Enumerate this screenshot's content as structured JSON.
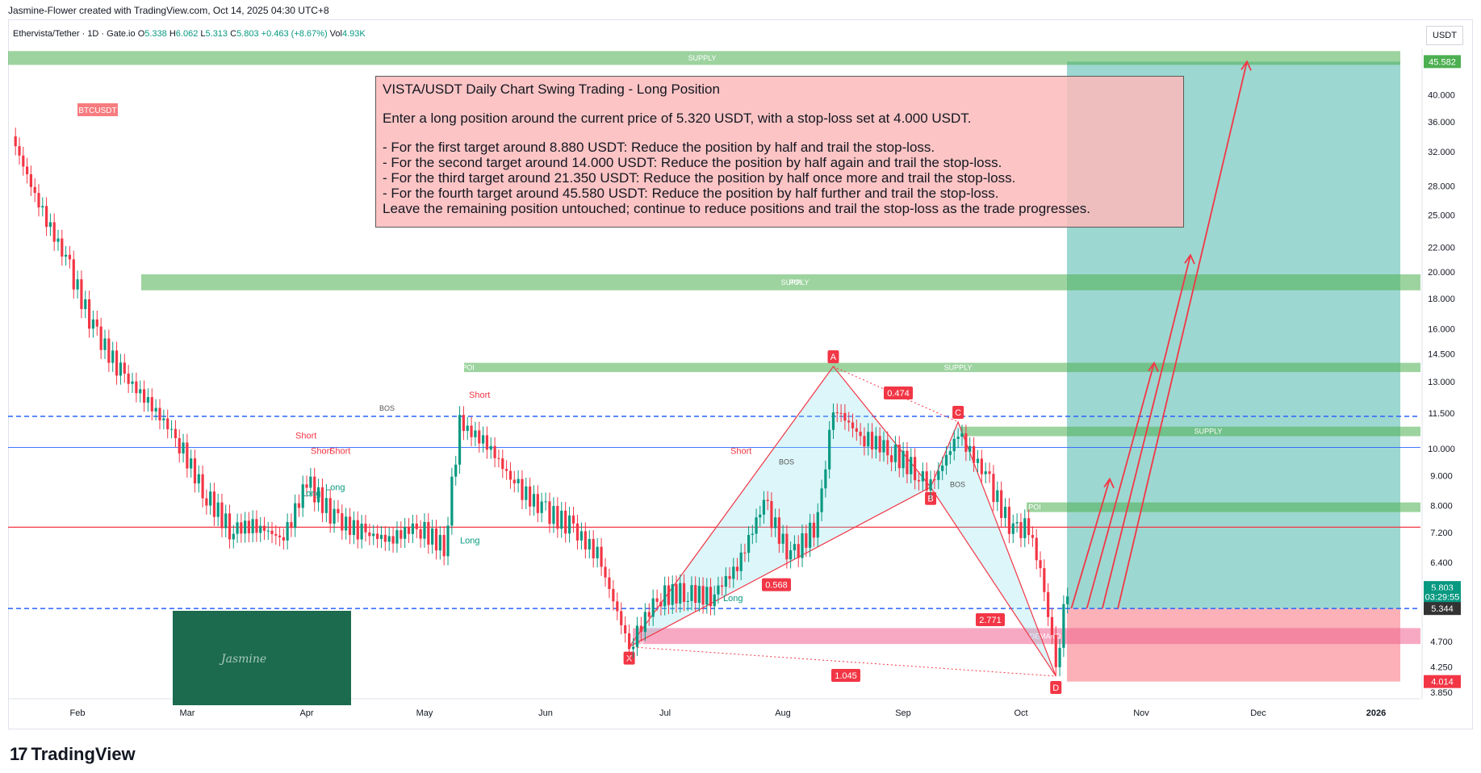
{
  "header": {
    "credit": "Jasmine-Flower created with TradingView.com, Oct 14, 2025 04:30 UTC+8",
    "symbol": "Ethervista/Tether · 1D · Gate.io",
    "open_label": "O",
    "open": "5.338",
    "high_label": "H",
    "high": "6.062",
    "low_label": "L",
    "low": "5.313",
    "close_label": "C",
    "close": "5.803",
    "change": "+0.463 (+8.67%)",
    "vol_label": "Vol",
    "vol": "4.93K"
  },
  "currency_unit": "USDT",
  "note": {
    "title": "VISTA/USDT Daily Chart Swing Trading - Long Position",
    "intro": "Enter a long position around the current price of 5.320 USDT, with a stop-loss set at 4.000 USDT.",
    "lines": [
      "- For the first target around 8.880 USDT: Reduce the position by half and trail the stop-loss.",
      "- For the second target around 14.000 USDT: Reduce the position by half again and trail the stop-loss.",
      "- For the third target around 21.350 USDT: Reduce the position by half once more and trail the stop-loss.",
      "- For the fourth target around 45.580 USDT: Reduce the position by half further and trail the stop-loss.",
      "Leave the remaining position untouched; continue to reduce positions and trail the stop-loss as the trade progresses."
    ]
  },
  "brand": "TradingView",
  "inset_label": "BTCUSDT",
  "chart_data": {
    "type": "candlestick",
    "scale": "log",
    "x_ticks": [
      "Feb",
      "Mar",
      "Apr",
      "May",
      "Jun",
      "Jul",
      "Aug",
      "Sep",
      "Oct",
      "Nov",
      "Dec",
      "2026"
    ],
    "y_ticks": [
      "40.000",
      "36.000",
      "32.000",
      "28.000",
      "25.000",
      "22.000",
      "20.000",
      "18.000",
      "16.000",
      "14.500",
      "13.000",
      "11.500",
      "10.000",
      "9.000",
      "8.000",
      "7.200",
      "6.400",
      "5.803",
      "5.344",
      "4.700",
      "4.250",
      "4.014",
      "3.850"
    ],
    "ylim": [
      3.8,
      48
    ],
    "price_tags": [
      {
        "label": "45.582",
        "value": 45.582,
        "color": "#4caf50"
      },
      {
        "label": "5.803",
        "value": 5.803,
        "color": "#089981"
      },
      {
        "label": "03:29:55",
        "value": 5.6,
        "color": "#089981"
      },
      {
        "label": "5.344",
        "value": 5.344,
        "color": "#333333"
      },
      {
        "label": "4.014",
        "value": 4.014,
        "color": "#f23645"
      }
    ],
    "close_path": [
      [
        "Jan 15",
        34
      ],
      [
        "Jan 22",
        26
      ],
      [
        "Jan 29",
        21
      ],
      [
        "Feb 5",
        16
      ],
      [
        "Feb 12",
        13.5
      ],
      [
        "Feb 19",
        12
      ],
      [
        "Feb 26",
        10.5
      ],
      [
        "Mar 5",
        8.5
      ],
      [
        "Mar 12",
        7.3
      ],
      [
        "Mar 19",
        7.4
      ],
      [
        "Mar 26",
        7.0
      ],
      [
        "Apr 1",
        8.8
      ],
      [
        "Apr 8",
        7.6
      ],
      [
        "Apr 15",
        7.2
      ],
      [
        "Apr 22",
        7.0
      ],
      [
        "Apr 29",
        7.4
      ],
      [
        "May 6",
        6.8
      ],
      [
        "May 10",
        11.0
      ],
      [
        "May 17",
        10.2
      ],
      [
        "May 24",
        8.7
      ],
      [
        "May 31",
        7.9
      ],
      [
        "Jun 7",
        7.4
      ],
      [
        "Jun 14",
        6.6
      ],
      [
        "Jun 22",
        4.6
      ],
      [
        "Jun 29",
        5.6
      ],
      [
        "Jul 6",
        5.7
      ],
      [
        "Jul 13",
        5.6
      ],
      [
        "Jul 20",
        6.3
      ],
      [
        "Jul 27",
        8.1
      ],
      [
        "Aug 3",
        6.5
      ],
      [
        "Aug 10",
        7.5
      ],
      [
        "Aug 14",
        11.8
      ],
      [
        "Aug 21",
        10.5
      ],
      [
        "Aug 28",
        10.0
      ],
      [
        "Sep 4",
        9.2
      ],
      [
        "Sep 8",
        8.6
      ],
      [
        "Sep 15",
        10.6
      ],
      [
        "Sep 22",
        9.0
      ],
      [
        "Sep 29",
        7.2
      ],
      [
        "Oct 3",
        7.4
      ],
      [
        "Oct 7",
        5.8
      ],
      [
        "Oct 10",
        4.3
      ],
      [
        "Oct 13",
        5.803
      ]
    ],
    "harmonic_points": [
      {
        "label": "X",
        "value": 4.6
      },
      {
        "label": "A",
        "value": 13.8
      },
      {
        "label": "B",
        "value": 8.6
      },
      {
        "label": "C",
        "value": 11.1
      },
      {
        "label": "D",
        "value": 4.1
      }
    ],
    "ratios": [
      "0.474",
      "0.568",
      "2.771",
      "1.045"
    ],
    "zones": [
      {
        "label": "SUPPLY",
        "low": 45.0,
        "high": 47.5
      },
      {
        "label": "POI",
        "low": 18.6,
        "high": 19.8
      },
      {
        "label": "SUPPLY",
        "low": 18.6,
        "high": 19.8
      },
      {
        "label": "POI",
        "low": 13.5,
        "high": 14.0
      },
      {
        "label": "SUPPLY",
        "low": 13.5,
        "high": 14.0
      },
      {
        "label": "SUPPLY",
        "low": 10.5,
        "high": 10.9
      },
      {
        "label": "POI",
        "low": 7.8,
        "high": 8.1
      },
      {
        "label": "DEMAND",
        "low": 4.65,
        "high": 4.95
      },
      {
        "label": "POI",
        "low": 4.55,
        "high": 4.75
      }
    ],
    "signals": [
      "Short",
      "Short",
      "Short",
      "Short",
      "Long",
      "Long",
      "Long",
      "Short",
      "Long"
    ],
    "structure_labels": [
      "BOS",
      "BOS",
      "BOS"
    ],
    "position": {
      "entry": 5.344,
      "stop": 4.014,
      "target": 45.582
    },
    "targets": [
      8.88,
      14.0,
      21.35,
      45.58
    ],
    "colors": {
      "up": "#089981",
      "down": "#f23645",
      "target_zone": "#26a69a",
      "stop_zone": "#f7525f",
      "supply": "#4caf50",
      "demand": "#f06292"
    }
  }
}
